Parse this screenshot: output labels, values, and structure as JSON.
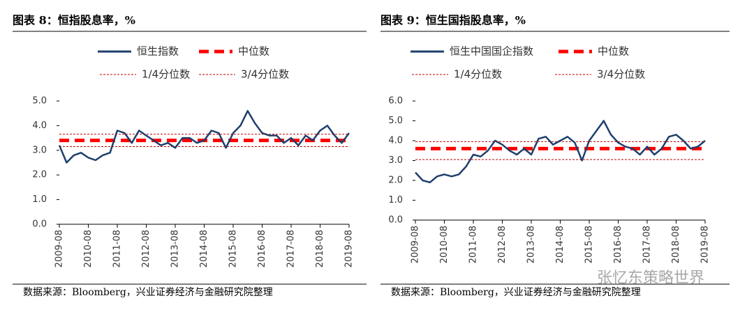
{
  "chart_data": [
    {
      "type": "line",
      "title": "图表 8：恒指股息率，%",
      "source": "数据来源：Bloomberg，兴业证券经济与金融研究院整理",
      "x": [
        "2009-08",
        "2009-11",
        "2010-02",
        "2010-05",
        "2010-08",
        "2010-11",
        "2011-02",
        "2011-05",
        "2011-08",
        "2011-11",
        "2012-02",
        "2012-05",
        "2012-08",
        "2012-11",
        "2013-02",
        "2013-05",
        "2013-08",
        "2013-11",
        "2014-02",
        "2014-05",
        "2014-08",
        "2014-11",
        "2015-02",
        "2015-05",
        "2015-08",
        "2015-11",
        "2016-02",
        "2016-05",
        "2016-08",
        "2016-11",
        "2017-02",
        "2017-05",
        "2017-08",
        "2017-11",
        "2018-02",
        "2018-05",
        "2018-08",
        "2018-11",
        "2019-02",
        "2019-05",
        "2019-08"
      ],
      "xticks": [
        "2009-08",
        "2010-08",
        "2011-08",
        "2012-08",
        "2013-08",
        "2014-08",
        "2015-08",
        "2016-08",
        "2017-08",
        "2018-08",
        "2019-08"
      ],
      "series": [
        {
          "name": "恒生指数",
          "color": "#1f3f6b",
          "values": [
            3.2,
            2.5,
            2.8,
            2.9,
            2.7,
            2.6,
            2.8,
            2.9,
            3.8,
            3.7,
            3.3,
            3.8,
            3.6,
            3.4,
            3.2,
            3.3,
            3.1,
            3.5,
            3.5,
            3.3,
            3.4,
            3.8,
            3.7,
            3.1,
            3.7,
            4.0,
            4.6,
            4.1,
            3.7,
            3.6,
            3.6,
            3.3,
            3.5,
            3.2,
            3.6,
            3.4,
            3.8,
            4.0,
            3.6,
            3.3,
            3.7
          ]
        }
      ],
      "reference_lines": [
        {
          "name": "中位数",
          "value": 3.4,
          "color": "#ff0000",
          "style": "median"
        },
        {
          "name": "1/4分位数",
          "value": 3.15,
          "color": "#c00000",
          "style": "quartile"
        },
        {
          "name": "3/4分位数",
          "value": 3.65,
          "color": "#c00000",
          "style": "quartile"
        }
      ],
      "ylim": [
        0,
        5
      ],
      "yticks": [
        {
          "value": 0,
          "label": "0.0"
        },
        {
          "value": 1,
          "label": "1.0"
        },
        {
          "value": 2,
          "label": "2.0"
        },
        {
          "value": 3,
          "label": "3.0"
        },
        {
          "value": 4,
          "label": "4.0"
        },
        {
          "value": 5,
          "label": "5.0"
        }
      ]
    },
    {
      "type": "line",
      "title": "图表 9：恒生国指股息率，%",
      "source": "数据来源：Bloomberg，兴业证券经济与金融研究院整理",
      "watermark": "张忆东策略世界",
      "x": [
        "2009-08",
        "2009-11",
        "2010-02",
        "2010-05",
        "2010-08",
        "2010-11",
        "2011-02",
        "2011-05",
        "2011-08",
        "2011-11",
        "2012-02",
        "2012-05",
        "2012-08",
        "2012-11",
        "2013-02",
        "2013-05",
        "2013-08",
        "2013-11",
        "2014-02",
        "2014-05",
        "2014-08",
        "2014-11",
        "2015-02",
        "2015-05",
        "2015-08",
        "2015-11",
        "2016-02",
        "2016-05",
        "2016-08",
        "2016-11",
        "2017-02",
        "2017-05",
        "2017-08",
        "2017-11",
        "2018-02",
        "2018-05",
        "2018-08",
        "2018-11",
        "2019-02",
        "2019-05",
        "2019-08"
      ],
      "xticks": [
        "2009-08",
        "2010-08",
        "2011-08",
        "2012-08",
        "2013-08",
        "2014-08",
        "2015-08",
        "2016-08",
        "2017-08",
        "2018-08",
        "2019-08"
      ],
      "series": [
        {
          "name": "恒生中国国企指数",
          "color": "#1f3f6b",
          "values": [
            2.4,
            2.0,
            1.9,
            2.2,
            2.3,
            2.2,
            2.3,
            2.7,
            3.3,
            3.2,
            3.5,
            4.0,
            3.8,
            3.5,
            3.3,
            3.6,
            3.3,
            4.1,
            4.2,
            3.8,
            4.0,
            4.2,
            3.9,
            3.0,
            4.0,
            4.5,
            5.0,
            4.3,
            3.9,
            3.7,
            3.6,
            3.3,
            3.7,
            3.3,
            3.6,
            4.2,
            4.3,
            4.0,
            3.6,
            3.7,
            4.0
          ]
        }
      ],
      "reference_lines": [
        {
          "name": "中位数",
          "value": 3.6,
          "color": "#ff0000",
          "style": "median"
        },
        {
          "name": "1/4分位数",
          "value": 3.05,
          "color": "#c00000",
          "style": "quartile"
        },
        {
          "name": "3/4分位数",
          "value": 3.95,
          "color": "#c00000",
          "style": "quartile"
        }
      ],
      "ylim": [
        0,
        6
      ],
      "yticks": [
        {
          "value": 0,
          "label": "0.0"
        },
        {
          "value": 1,
          "label": "1.0"
        },
        {
          "value": 2,
          "label": "2.0"
        },
        {
          "value": 3,
          "label": "3.0"
        },
        {
          "value": 4,
          "label": "4.0"
        },
        {
          "value": 5,
          "label": "5.0"
        },
        {
          "value": 6,
          "label": "6.0"
        }
      ]
    }
  ]
}
